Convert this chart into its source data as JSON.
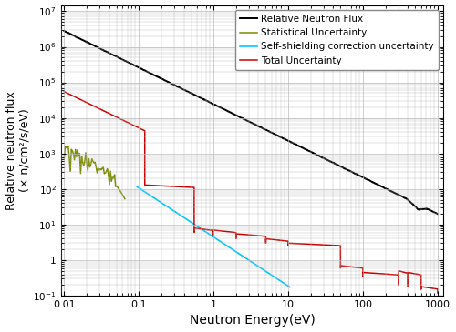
{
  "title": "",
  "xlabel": "Neutron Energy(eV)",
  "ylabel": "Relative neutron flux\n(× n/cm²/s/eV)",
  "xlim": [
    0.009,
    1200
  ],
  "ylim": [
    0.1,
    15000000.0
  ],
  "legend_labels": [
    "Relative Neutron Flux",
    "Statistical Uncertainty",
    "Self-shielding correction uncertainty",
    "Total Uncertainty"
  ],
  "line_colors": [
    "#000000",
    "#7b8c00",
    "#00c8ff",
    "#cc0000"
  ],
  "background_color": "#ffffff",
  "grid_color": "#bbbbbb"
}
